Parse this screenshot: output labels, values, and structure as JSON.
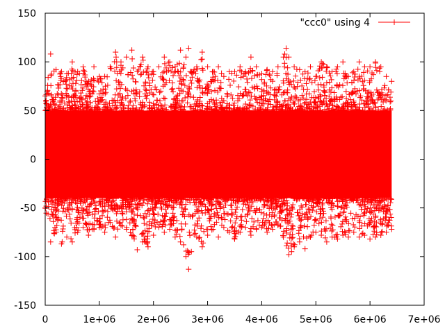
{
  "chart_data": {
    "type": "scatter",
    "title": "",
    "xlabel": "",
    "ylabel": "",
    "xlim": [
      0,
      7000000
    ],
    "ylim": [
      -150,
      150
    ],
    "grid": false,
    "legend_placement": "top-right",
    "x_ticks": [
      {
        "value": 0,
        "label": "0"
      },
      {
        "value": 1000000,
        "label": "1e+06"
      },
      {
        "value": 2000000,
        "label": "2e+06"
      },
      {
        "value": 3000000,
        "label": "3e+06"
      },
      {
        "value": 4000000,
        "label": "4e+06"
      },
      {
        "value": 5000000,
        "label": "5e+06"
      },
      {
        "value": 6000000,
        "label": "6e+06"
      },
      {
        "value": 7000000,
        "label": "7e+06"
      }
    ],
    "y_ticks": [
      {
        "value": 150,
        "label": "150"
      },
      {
        "value": 100,
        "label": "100"
      },
      {
        "value": 50,
        "label": "50"
      },
      {
        "value": 0,
        "label": "0"
      },
      {
        "value": -50,
        "label": "-50"
      },
      {
        "value": -100,
        "label": "-100"
      },
      {
        "value": -150,
        "label": "-150"
      }
    ],
    "series": [
      {
        "name": "\"ccc0\" using 4",
        "color": "#ff0000",
        "marker": "plus",
        "x_range": [
          0,
          6400000
        ],
        "y_core_range": [
          -40,
          50
        ],
        "y_extent": [
          -113,
          114
        ],
        "upper_envelope": [
          [
            0,
            65
          ],
          [
            100000,
            108
          ],
          [
            200000,
            92
          ],
          [
            300000,
            90
          ],
          [
            400000,
            88
          ],
          [
            500000,
            100
          ],
          [
            600000,
            90
          ],
          [
            700000,
            95
          ],
          [
            800000,
            80
          ],
          [
            900000,
            95
          ],
          [
            1000000,
            85
          ],
          [
            1100000,
            85
          ],
          [
            1200000,
            95
          ],
          [
            1300000,
            110
          ],
          [
            1400000,
            100
          ],
          [
            1500000,
            105
          ],
          [
            1600000,
            112
          ],
          [
            1700000,
            90
          ],
          [
            1800000,
            105
          ],
          [
            1900000,
            95
          ],
          [
            2000000,
            90
          ],
          [
            2100000,
            95
          ],
          [
            2200000,
            105
          ],
          [
            2300000,
            100
          ],
          [
            2400000,
            95
          ],
          [
            2500000,
            112
          ],
          [
            2600000,
            105
          ],
          [
            2650000,
            114
          ],
          [
            2700000,
            90
          ],
          [
            2800000,
            95
          ],
          [
            2900000,
            110
          ],
          [
            3000000,
            95
          ],
          [
            3100000,
            90
          ],
          [
            3200000,
            95
          ],
          [
            3300000,
            85
          ],
          [
            3400000,
            90
          ],
          [
            3500000,
            90
          ],
          [
            3600000,
            95
          ],
          [
            3700000,
            90
          ],
          [
            3800000,
            105
          ],
          [
            3900000,
            95
          ],
          [
            4000000,
            88
          ],
          [
            4100000,
            92
          ],
          [
            4200000,
            90
          ],
          [
            4300000,
            95
          ],
          [
            4400000,
            105
          ],
          [
            4450000,
            114
          ],
          [
            4500000,
            105
          ],
          [
            4600000,
            95
          ],
          [
            4700000,
            92
          ],
          [
            4800000,
            90
          ],
          [
            4900000,
            95
          ],
          [
            5000000,
            85
          ],
          [
            5100000,
            100
          ],
          [
            5200000,
            95
          ],
          [
            5300000,
            90
          ],
          [
            5400000,
            95
          ],
          [
            5500000,
            100
          ],
          [
            5600000,
            85
          ],
          [
            5700000,
            90
          ],
          [
            5800000,
            100
          ],
          [
            5900000,
            95
          ],
          [
            6000000,
            95
          ],
          [
            6100000,
            100
          ],
          [
            6200000,
            95
          ],
          [
            6300000,
            85
          ],
          [
            6400000,
            80
          ]
        ],
        "lower_envelope": [
          [
            0,
            -50
          ],
          [
            100000,
            -85
          ],
          [
            200000,
            -75
          ],
          [
            300000,
            -87
          ],
          [
            400000,
            -80
          ],
          [
            500000,
            -85
          ],
          [
            600000,
            -75
          ],
          [
            700000,
            -70
          ],
          [
            800000,
            -78
          ],
          [
            900000,
            -72
          ],
          [
            1000000,
            -70
          ],
          [
            1100000,
            -75
          ],
          [
            1200000,
            -65
          ],
          [
            1300000,
            -80
          ],
          [
            1400000,
            -68
          ],
          [
            1500000,
            -72
          ],
          [
            1600000,
            -78
          ],
          [
            1700000,
            -93
          ],
          [
            1800000,
            -85
          ],
          [
            1900000,
            -90
          ],
          [
            2000000,
            -78
          ],
          [
            2100000,
            -70
          ],
          [
            2200000,
            -75
          ],
          [
            2300000,
            -72
          ],
          [
            2400000,
            -80
          ],
          [
            2500000,
            -85
          ],
          [
            2600000,
            -100
          ],
          [
            2650000,
            -113
          ],
          [
            2700000,
            -95
          ],
          [
            2800000,
            -80
          ],
          [
            2900000,
            -90
          ],
          [
            3000000,
            -78
          ],
          [
            3100000,
            -72
          ],
          [
            3200000,
            -80
          ],
          [
            3300000,
            -70
          ],
          [
            3400000,
            -75
          ],
          [
            3500000,
            -82
          ],
          [
            3600000,
            -75
          ],
          [
            3700000,
            -70
          ],
          [
            3800000,
            -78
          ],
          [
            3900000,
            -72
          ],
          [
            4000000,
            -70
          ],
          [
            4100000,
            -75
          ],
          [
            4200000,
            -72
          ],
          [
            4300000,
            -68
          ],
          [
            4400000,
            -80
          ],
          [
            4500000,
            -98
          ],
          [
            4550000,
            -95
          ],
          [
            4600000,
            -90
          ],
          [
            4700000,
            -85
          ],
          [
            4800000,
            -92
          ],
          [
            4900000,
            -80
          ],
          [
            5000000,
            -75
          ],
          [
            5100000,
            -78
          ],
          [
            5200000,
            -85
          ],
          [
            5300000,
            -80
          ],
          [
            5400000,
            -82
          ],
          [
            5500000,
            -78
          ],
          [
            5600000,
            -80
          ],
          [
            5700000,
            -75
          ],
          [
            5800000,
            -80
          ],
          [
            5900000,
            -78
          ],
          [
            6000000,
            -82
          ],
          [
            6100000,
            -80
          ],
          [
            6200000,
            -78
          ],
          [
            6300000,
            -75
          ],
          [
            6400000,
            -72
          ]
        ]
      }
    ]
  }
}
